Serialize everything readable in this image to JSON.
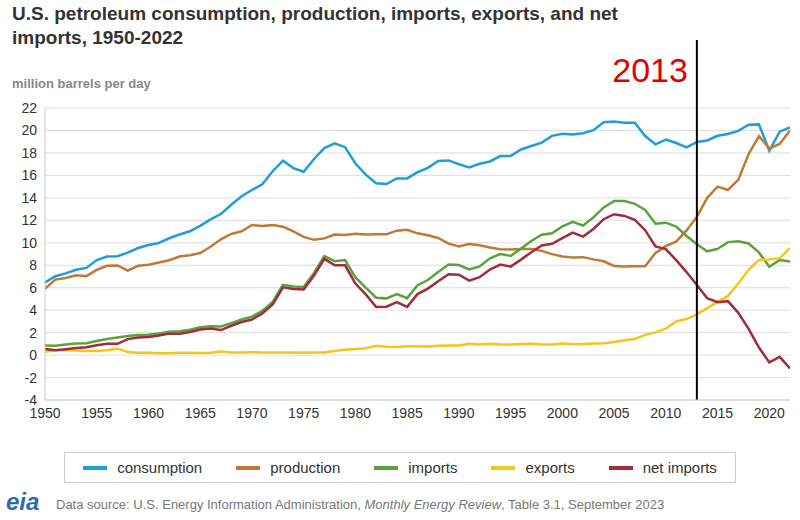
{
  "chart_data": {
    "type": "line",
    "title": "U.S. petroleum consumption, production, imports, exports, and net imports, 1950-2022",
    "subtitle": "million barrels per day",
    "x": [
      1950,
      1951,
      1952,
      1953,
      1954,
      1955,
      1956,
      1957,
      1958,
      1959,
      1960,
      1961,
      1962,
      1963,
      1964,
      1965,
      1966,
      1967,
      1968,
      1969,
      1970,
      1971,
      1972,
      1973,
      1974,
      1975,
      1976,
      1977,
      1978,
      1979,
      1980,
      1981,
      1982,
      1983,
      1984,
      1985,
      1986,
      1987,
      1988,
      1989,
      1990,
      1991,
      1992,
      1993,
      1994,
      1995,
      1996,
      1997,
      1998,
      1999,
      2000,
      2001,
      2002,
      2003,
      2004,
      2005,
      2006,
      2007,
      2008,
      2009,
      2010,
      2011,
      2012,
      2013,
      2014,
      2015,
      2016,
      2017,
      2018,
      2019,
      2020,
      2021,
      2022
    ],
    "series": [
      {
        "name": "consumption",
        "color": "#1f9ed9",
        "values": [
          6.46,
          7.02,
          7.27,
          7.6,
          7.76,
          8.46,
          8.78,
          8.81,
          9.12,
          9.53,
          9.8,
          9.98,
          10.4,
          10.74,
          11.02,
          11.51,
          12.08,
          12.56,
          13.39,
          14.14,
          14.7,
          15.21,
          16.37,
          17.31,
          16.65,
          16.32,
          17.46,
          18.43,
          18.85,
          18.51,
          17.06,
          16.06,
          15.3,
          15.23,
          15.73,
          15.73,
          16.28,
          16.67,
          17.28,
          17.33,
          16.99,
          16.71,
          17.03,
          17.24,
          17.72,
          17.72,
          18.31,
          18.62,
          18.92,
          19.52,
          19.7,
          19.65,
          19.76,
          20.03,
          20.73,
          20.8,
          20.69,
          20.68,
          19.5,
          18.77,
          19.18,
          18.88,
          18.49,
          18.97,
          19.11,
          19.53,
          19.69,
          19.96,
          20.51,
          20.54,
          18.19,
          19.89,
          20.28
        ]
      },
      {
        "name": "production",
        "color": "#c07a35",
        "values": [
          5.91,
          6.72,
          6.87,
          7.11,
          7.03,
          7.58,
          7.95,
          7.98,
          7.52,
          7.95,
          8.04,
          8.24,
          8.44,
          8.77,
          8.89,
          9.09,
          9.65,
          10.31,
          10.78,
          11.02,
          11.58,
          11.5,
          11.59,
          11.43,
          11.01,
          10.52,
          10.26,
          10.39,
          10.73,
          10.7,
          10.8,
          10.74,
          10.76,
          10.75,
          11.08,
          11.16,
          10.84,
          10.67,
          10.43,
          9.92,
          9.68,
          9.89,
          9.77,
          9.58,
          9.43,
          9.41,
          9.45,
          9.45,
          9.28,
          8.99,
          8.78,
          8.69,
          8.72,
          8.52,
          8.35,
          7.93,
          7.88,
          7.9,
          7.91,
          9.1,
          9.7,
          10.1,
          11.1,
          12.3,
          14.0,
          15.0,
          14.7,
          15.6,
          17.9,
          19.5,
          18.4,
          18.8,
          20.0
        ]
      },
      {
        "name": "imports",
        "color": "#5aa33c",
        "values": [
          0.85,
          0.84,
          0.95,
          1.03,
          1.05,
          1.25,
          1.44,
          1.57,
          1.7,
          1.78,
          1.82,
          1.92,
          2.08,
          2.12,
          2.26,
          2.47,
          2.57,
          2.54,
          2.84,
          3.17,
          3.42,
          3.93,
          4.74,
          6.26,
          6.11,
          6.06,
          7.31,
          8.81,
          8.36,
          8.46,
          6.91,
          6.0,
          5.11,
          5.05,
          5.44,
          5.07,
          6.22,
          6.68,
          7.4,
          8.06,
          8.02,
          7.63,
          7.89,
          8.62,
          9.0,
          8.83,
          9.48,
          10.16,
          10.71,
          10.85,
          11.46,
          11.87,
          11.53,
          12.26,
          13.15,
          13.71,
          13.71,
          13.47,
          12.92,
          11.69,
          11.79,
          11.44,
          10.6,
          9.86,
          9.24,
          9.45,
          10.06,
          10.14,
          9.94,
          9.14,
          7.86,
          8.47,
          8.33
        ]
      },
      {
        "name": "exports",
        "color": "#f5c518",
        "values": [
          0.3,
          0.42,
          0.43,
          0.4,
          0.36,
          0.37,
          0.43,
          0.57,
          0.28,
          0.21,
          0.2,
          0.17,
          0.17,
          0.21,
          0.2,
          0.19,
          0.2,
          0.31,
          0.23,
          0.23,
          0.26,
          0.22,
          0.22,
          0.23,
          0.22,
          0.21,
          0.22,
          0.24,
          0.36,
          0.47,
          0.54,
          0.6,
          0.82,
          0.74,
          0.72,
          0.78,
          0.79,
          0.76,
          0.82,
          0.86,
          0.86,
          1.0,
          0.95,
          1.0,
          0.94,
          0.95,
          0.98,
          1.0,
          0.95,
          0.94,
          1.04,
          0.97,
          0.98,
          1.03,
          1.05,
          1.17,
          1.32,
          1.43,
          1.8,
          2.02,
          2.35,
          2.99,
          3.21,
          3.62,
          4.18,
          4.74,
          5.26,
          6.38,
          7.6,
          8.47,
          8.51,
          8.63,
          9.52
        ]
      },
      {
        "name": "net imports",
        "color": "#a02c3c",
        "values": [
          0.55,
          0.42,
          0.52,
          0.63,
          0.69,
          0.88,
          1.01,
          1.0,
          1.42,
          1.57,
          1.62,
          1.75,
          1.91,
          1.91,
          2.06,
          2.28,
          2.37,
          2.23,
          2.61,
          2.94,
          3.16,
          3.71,
          4.52,
          6.03,
          5.89,
          5.85,
          7.09,
          8.57,
          8.0,
          7.99,
          6.37,
          5.4,
          4.29,
          4.31,
          4.72,
          4.29,
          5.43,
          5.92,
          6.58,
          7.2,
          7.16,
          6.63,
          6.94,
          7.62,
          8.06,
          7.88,
          8.5,
          9.16,
          9.76,
          9.91,
          10.42,
          10.9,
          10.55,
          11.23,
          12.1,
          12.54,
          12.39,
          12.04,
          11.12,
          9.67,
          9.44,
          8.45,
          7.39,
          6.24,
          5.06,
          4.71,
          4.8,
          3.76,
          2.34,
          0.67,
          -0.65,
          -0.16,
          -1.19
        ]
      }
    ],
    "xlim": [
      1950,
      2022
    ],
    "xticks": [
      1950,
      1955,
      1960,
      1965,
      1970,
      1975,
      1980,
      1985,
      1990,
      1995,
      2000,
      2005,
      2010,
      2015,
      2020
    ],
    "ylim": [
      -4,
      22
    ],
    "yticks": [
      -4,
      -2,
      0,
      2,
      4,
      6,
      8,
      10,
      12,
      14,
      16,
      18,
      20,
      22
    ],
    "grid": true,
    "legend": "bottom",
    "annotations": [
      {
        "x": 2013,
        "label": "2013",
        "color": "#e00000"
      }
    ],
    "source": [
      "Data source: U.S. Energy Information Administration, ",
      "Monthly Energy Review",
      ", Table 3.1, September 2023"
    ],
    "logo": "eia"
  }
}
